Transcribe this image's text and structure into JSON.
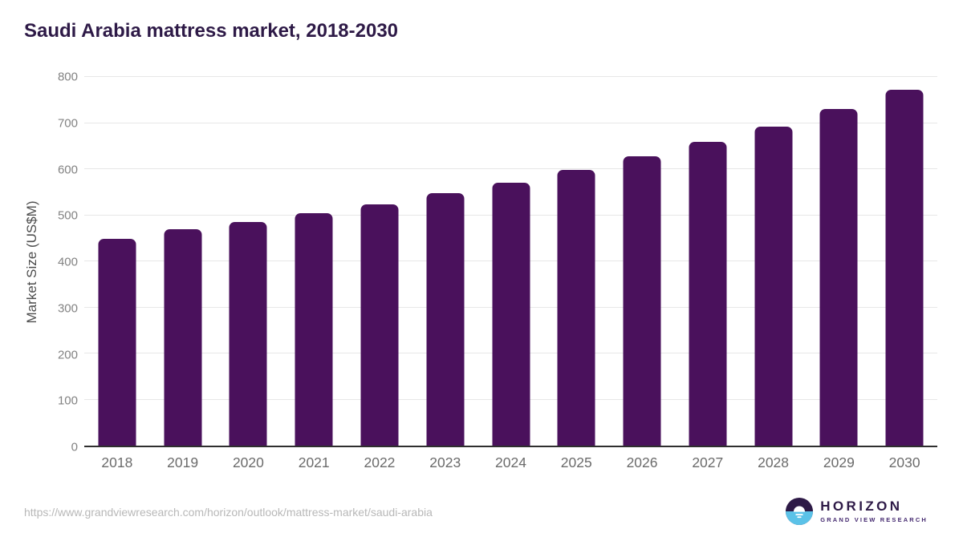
{
  "title": "Saudi Arabia mattress market, 2018-2030",
  "footer": {
    "source_url": "https://www.grandviewresearch.com/horizon/outlook/mattress-market/saudi-arabia"
  },
  "logo": {
    "name": "HORIZON",
    "subtitle": "GRAND VIEW RESEARCH"
  },
  "colors": {
    "bar": "#4a115c",
    "title_text": "#2e1a47",
    "logo_blue": "#5bc2e8",
    "gridline": "#e7e7e7",
    "axis_line": "#2f2f2f"
  },
  "chart_data": {
    "type": "bar",
    "title": "Saudi Arabia mattress market, 2018-2030",
    "categories": [
      "2018",
      "2019",
      "2020",
      "2021",
      "2022",
      "2023",
      "2024",
      "2025",
      "2026",
      "2027",
      "2028",
      "2029",
      "2030"
    ],
    "values": [
      448,
      470,
      485,
      504,
      524,
      547,
      570,
      598,
      627,
      659,
      693,
      731,
      772
    ],
    "xlabel": "",
    "ylabel": "Market Size (US$M)",
    "ylim": [
      0,
      800
    ],
    "ytick_interval": 100,
    "grid": true,
    "legend": false,
    "bar_color": "#4a115c"
  }
}
